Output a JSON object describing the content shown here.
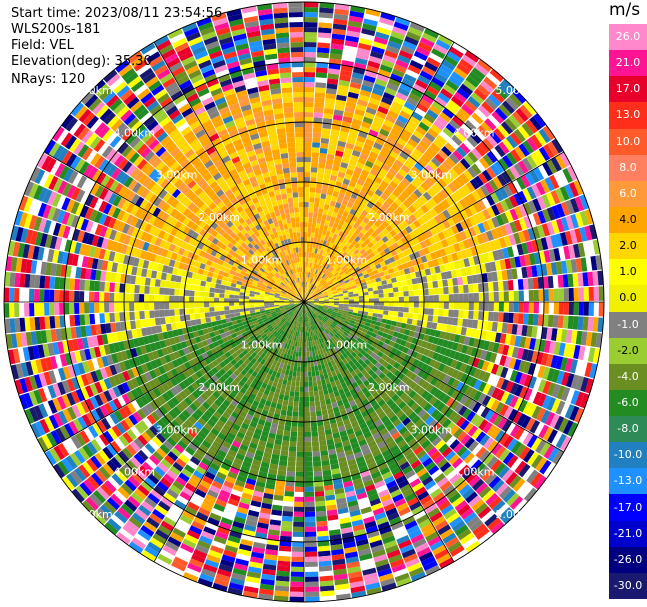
{
  "header": {
    "start_time": "Start time: 2023/08/11 23:54:56",
    "instrument": "WLS200s-181",
    "field": "Field: VEL",
    "elevation": "Elevation(deg): 35.30",
    "nrays": "NRays: 120"
  },
  "colorbar": {
    "unit": "m/s",
    "labels": [
      "26.0",
      "21.0",
      "17.0",
      "13.0",
      "10.0",
      "8.0",
      "6.0",
      "4.0",
      "2.0",
      "1.0",
      "0.0",
      "-1.0",
      "-2.0",
      "-4.0",
      "-6.0",
      "-8.0",
      "-10.0",
      "-13.0",
      "-17.0",
      "-21.0",
      "-26.0",
      "-30.0"
    ],
    "colors": [
      "#ff88cc",
      "#ff1493",
      "#e8002a",
      "#ff2e1a",
      "#ff5a2a",
      "#ff8060",
      "#ff9a3a",
      "#ffa500",
      "#ffd700",
      "#ffff00",
      "#f0f000",
      "#808080",
      "#9acd32",
      "#6b8e23",
      "#228b22",
      "#2e8b57",
      "#2080c0",
      "#1e90ff",
      "#0000ff",
      "#0000cd",
      "#000080",
      "#191970"
    ]
  },
  "chart_data": {
    "type": "polar-ppi",
    "field": "VEL",
    "units": "m/s",
    "nrays": 120,
    "elevation_deg": 35.3,
    "range_rings_km": [
      1.0,
      2.0,
      3.0,
      4.0,
      5.0
    ],
    "ring_labels": [
      "1.00km",
      "2.00km",
      "3.00km",
      "4.00km",
      "5.00km"
    ],
    "vmin": -30.0,
    "vmax": 26.0,
    "regions": [
      {
        "description": "upper sector",
        "typical_velocity": 4.0
      },
      {
        "description": "near center east",
        "typical_velocity": 0.0
      },
      {
        "description": "lower sector",
        "typical_velocity": -6.0
      },
      {
        "description": "outer ring",
        "typical_velocity": "noise"
      }
    ]
  }
}
